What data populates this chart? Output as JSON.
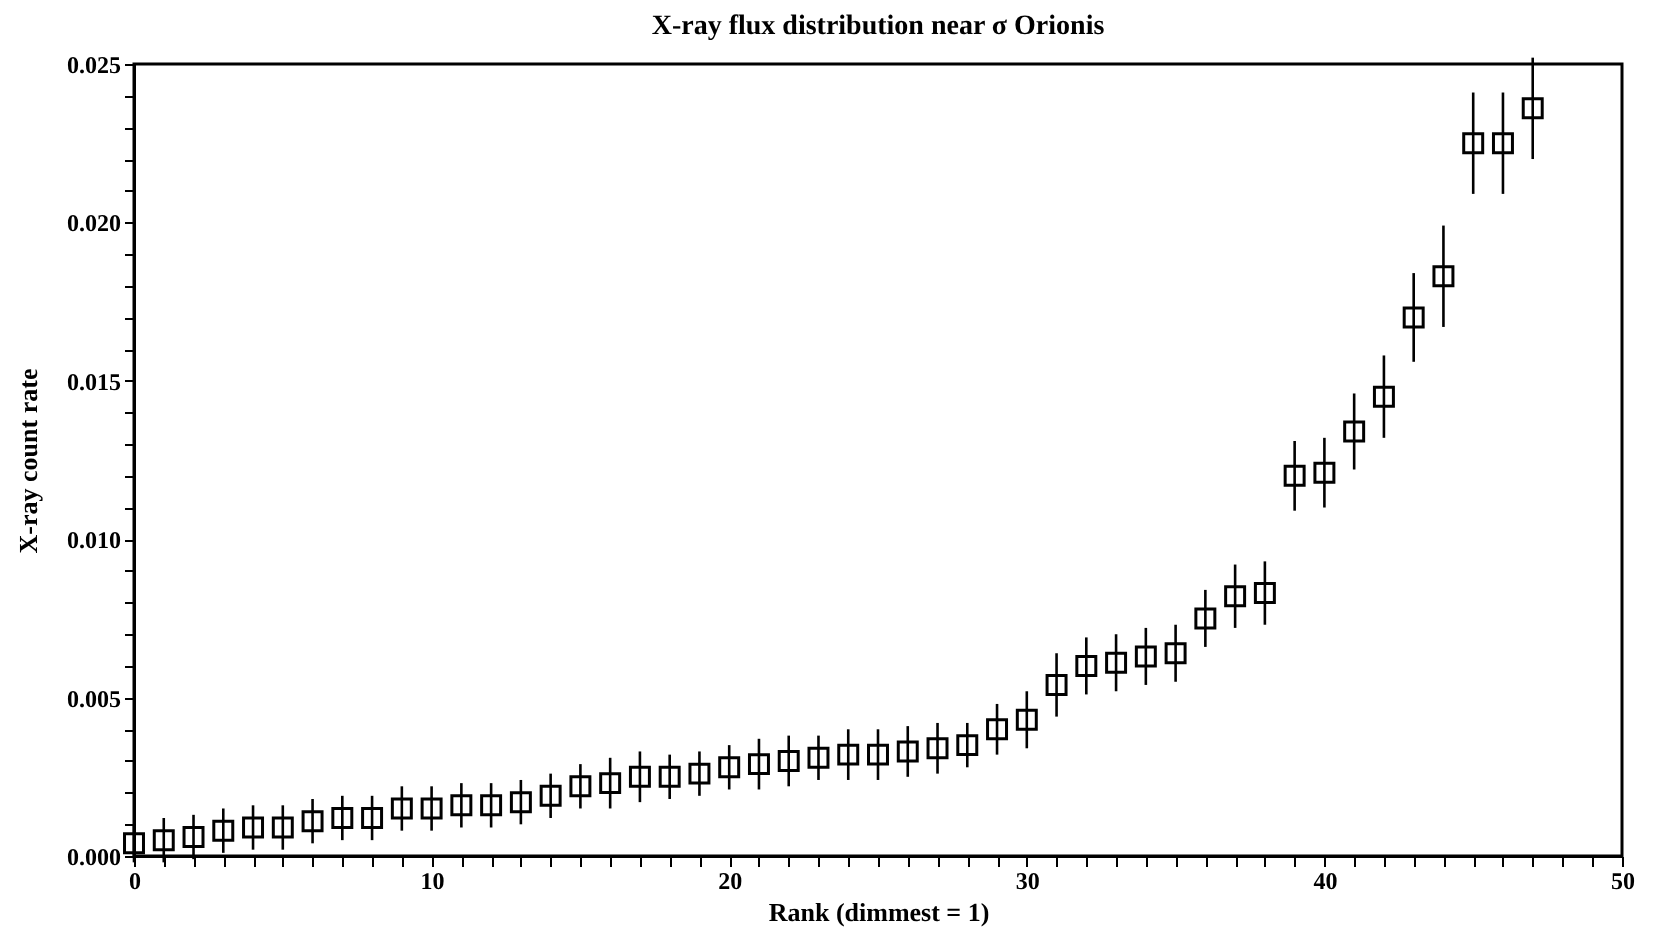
{
  "chart_data": {
    "type": "scatter",
    "title": "X-ray flux distribution near σ Orionis",
    "xlabel": "Rank (dimmest = 1)",
    "ylabel": "X-ray count rate",
    "x": [
      0,
      1,
      2,
      3,
      4,
      5,
      6,
      7,
      8,
      9,
      10,
      11,
      12,
      13,
      14,
      15,
      16,
      17,
      18,
      19,
      20,
      21,
      22,
      23,
      24,
      25,
      26,
      27,
      28,
      29,
      30,
      31,
      32,
      33,
      34,
      35,
      36,
      37,
      38,
      39,
      40,
      41,
      42,
      43,
      44,
      45,
      46,
      47
    ],
    "series": [
      {
        "color": "#000000",
        "values": [
          0.0004,
          0.0005,
          0.0006,
          0.0008,
          0.0009,
          0.0009,
          0.0011,
          0.0012,
          0.0012,
          0.0015,
          0.0015,
          0.0016,
          0.0016,
          0.0017,
          0.0019,
          0.0022,
          0.0023,
          0.0025,
          0.0025,
          0.0026,
          0.0028,
          0.0029,
          0.003,
          0.0031,
          0.0032,
          0.0032,
          0.0033,
          0.0034,
          0.0035,
          0.004,
          0.0043,
          0.0054,
          0.006,
          0.0061,
          0.0063,
          0.0064,
          0.0075,
          0.0082,
          0.0083,
          0.012,
          0.0121,
          0.0134,
          0.0145,
          0.017,
          0.0183,
          0.0225,
          0.0225,
          0.0236
        ],
        "errors": [
          0.0006,
          0.0007,
          0.0007,
          0.0007,
          0.0007,
          0.0007,
          0.0007,
          0.0007,
          0.0007,
          0.0007,
          0.0007,
          0.0007,
          0.0007,
          0.0007,
          0.0007,
          0.0007,
          0.0008,
          0.0008,
          0.0007,
          0.0007,
          0.0007,
          0.0008,
          0.0008,
          0.0007,
          0.0008,
          0.0008,
          0.0008,
          0.0008,
          0.0007,
          0.0008,
          0.0009,
          0.001,
          0.0009,
          0.0009,
          0.0009,
          0.0009,
          0.0009,
          0.001,
          0.001,
          0.0011,
          0.0011,
          0.0012,
          0.0013,
          0.0014,
          0.0016,
          0.0016,
          0.0016,
          0.0016
        ]
      }
    ],
    "marker": "square",
    "xlim": [
      0,
      50
    ],
    "xticks": [
      0,
      {
        "value": 1,
        "label": null
      },
      {
        "value": 2,
        "label": null
      },
      {
        "value": 3,
        "label": null
      },
      {
        "value": 4,
        "label": null
      },
      {
        "value": 5,
        "label": null
      },
      {
        "value": 6,
        "label": null
      },
      {
        "value": 7,
        "label": null
      },
      {
        "value": 8,
        "label": null
      },
      {
        "value": 9,
        "label": null
      },
      10,
      {
        "value": 11,
        "label": null
      },
      {
        "value": 12,
        "label": null
      },
      {
        "value": 13,
        "label": null
      },
      {
        "value": 14,
        "label": null
      },
      {
        "value": 15,
        "label": null
      },
      {
        "value": 16,
        "label": null
      },
      {
        "value": 17,
        "label": null
      },
      {
        "value": 18,
        "label": null
      },
      {
        "value": 19,
        "label": null
      },
      20,
      {
        "value": 21,
        "label": null
      },
      {
        "value": 22,
        "label": null
      },
      {
        "value": 23,
        "label": null
      },
      {
        "value": 24,
        "label": null
      },
      {
        "value": 25,
        "label": null
      },
      {
        "value": 26,
        "label": null
      },
      {
        "value": 27,
        "label": null
      },
      {
        "value": 28,
        "label": null
      },
      {
        "value": 29,
        "label": null
      },
      30,
      {
        "value": 31,
        "label": null
      },
      {
        "value": 32,
        "label": null
      },
      {
        "value": 33,
        "label": null
      },
      {
        "value": 34,
        "label": null
      },
      {
        "value": 35,
        "label": null
      },
      {
        "value": 36,
        "label": null
      },
      {
        "value": 37,
        "label": null
      },
      {
        "value": 38,
        "label": null
      },
      {
        "value": 39,
        "label": null
      },
      40,
      {
        "value": 41,
        "label": null
      },
      {
        "value": 42,
        "label": null
      },
      {
        "value": 43,
        "label": null
      },
      {
        "value": 44,
        "label": null
      },
      {
        "value": 45,
        "label": null
      },
      {
        "value": 46,
        "label": null
      },
      {
        "value": 47,
        "label": null
      },
      {
        "value": 48,
        "label": null
      },
      {
        "value": 49,
        "label": null
      },
      50
    ],
    "ylim": [
      0,
      0.025
    ],
    "yticks": [
      {
        "value": 0,
        "label": "0.000"
      },
      {
        "value": 0.001,
        "label": null
      },
      {
        "value": 0.002,
        "label": null
      },
      {
        "value": 0.003,
        "label": null
      },
      {
        "value": 0.004,
        "label": null
      },
      {
        "value": 0.005,
        "label": "0.005"
      },
      {
        "value": 0.006,
        "label": null
      },
      {
        "value": 0.007,
        "label": null
      },
      {
        "value": 0.008,
        "label": null
      },
      {
        "value": 0.009,
        "label": null
      },
      {
        "value": 0.01,
        "label": "0.010"
      },
      {
        "value": 0.011,
        "label": null
      },
      {
        "value": 0.012,
        "label": null
      },
      {
        "value": 0.013,
        "label": null
      },
      {
        "value": 0.014,
        "label": null
      },
      {
        "value": 0.015,
        "label": "0.015"
      },
      {
        "value": 0.016,
        "label": null
      },
      {
        "value": 0.017,
        "label": null
      },
      {
        "value": 0.018,
        "label": null
      },
      {
        "value": 0.019,
        "label": null
      },
      {
        "value": 0.02,
        "label": "0.020"
      },
      {
        "value": 0.021,
        "label": null
      },
      {
        "value": 0.022,
        "label": null
      },
      {
        "value": 0.023,
        "label": null
      },
      {
        "value": 0.024,
        "label": null
      },
      {
        "value": 0.025,
        "label": "0.025"
      }
    ],
    "grid": false,
    "legend": false
  }
}
